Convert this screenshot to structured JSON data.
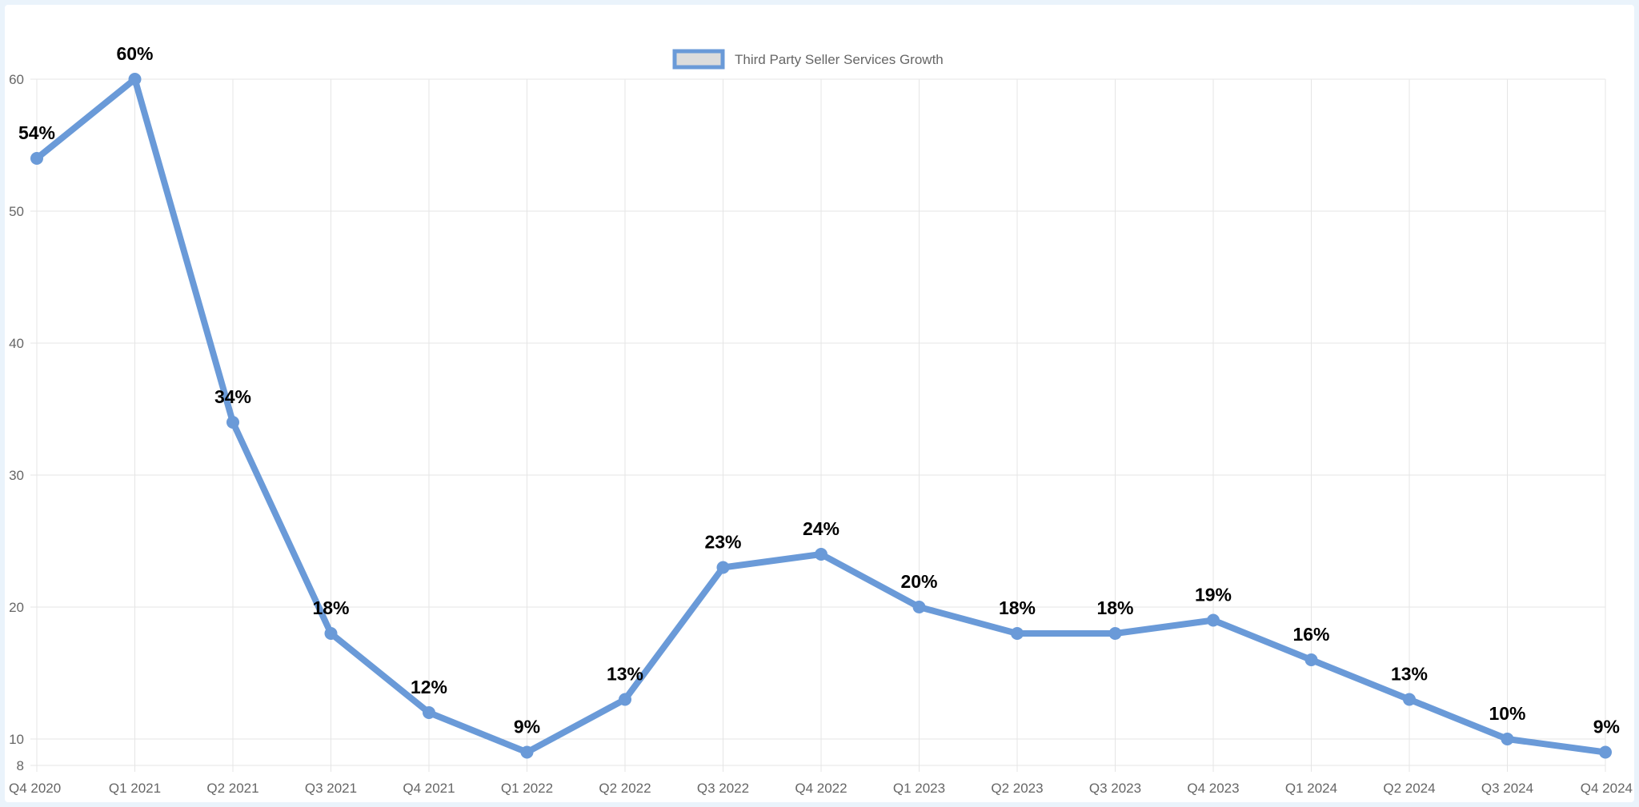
{
  "chart_data": {
    "type": "line",
    "title": "",
    "xlabel": "",
    "ylabel": "",
    "categories": [
      "Q4 2020",
      "Q1 2021",
      "Q2 2021",
      "Q3 2021",
      "Q4 2021",
      "Q1 2022",
      "Q2 2022",
      "Q3 2022",
      "Q4 2022",
      "Q1 2023",
      "Q2 2023",
      "Q3 2023",
      "Q4 2023",
      "Q1 2024",
      "Q2 2024",
      "Q3 2024",
      "Q4 2024"
    ],
    "series": [
      {
        "name": "Third Party Seller Services Growth",
        "values": [
          54,
          60,
          34,
          18,
          12,
          9,
          13,
          23,
          24,
          20,
          18,
          18,
          19,
          16,
          13,
          10,
          9
        ],
        "data_labels": [
          "54%",
          "60%",
          "34%",
          "18%",
          "12%",
          "9%",
          "13%",
          "23%",
          "24%",
          "20%",
          "18%",
          "18%",
          "19%",
          "16%",
          "13%",
          "10%",
          "9%"
        ]
      }
    ],
    "y_ticks": [
      8,
      10,
      20,
      30,
      40,
      50,
      60
    ],
    "ylim": [
      8,
      60
    ],
    "grid": true,
    "legend": "top-center",
    "colors": {
      "line": "#6a9ad8",
      "legend_fill": "#dcdcdc",
      "grid": "#e5e5e5",
      "background": "#ffffff",
      "frame": "#eaf3fb"
    }
  }
}
